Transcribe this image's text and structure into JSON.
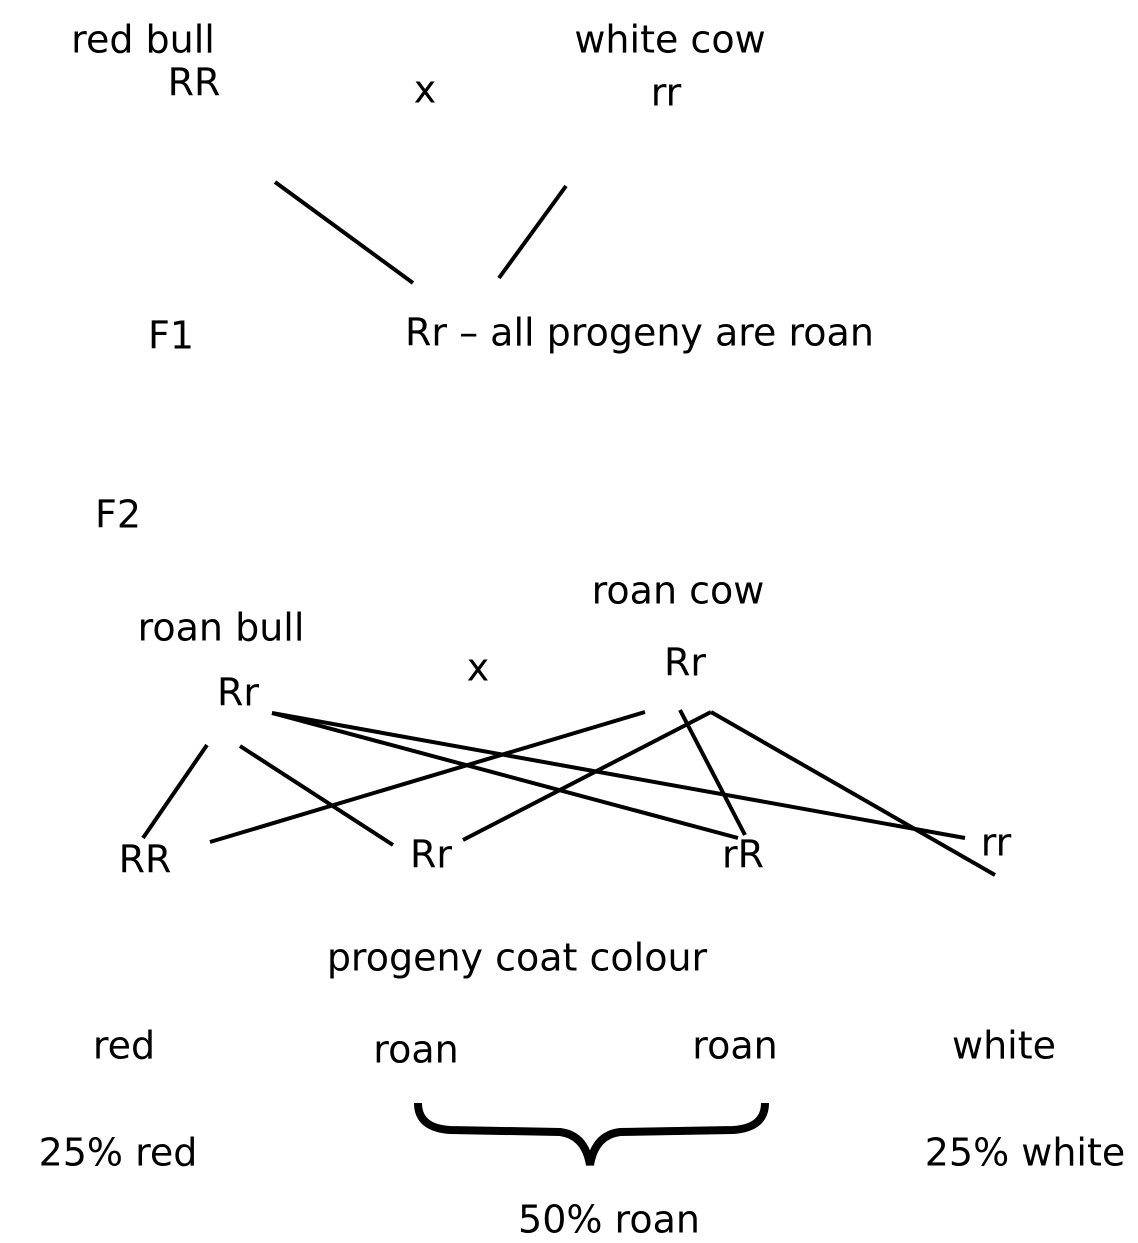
{
  "cross1": {
    "father": {
      "label": "red bull",
      "genotype": "RR"
    },
    "cross": "x",
    "mother": {
      "label": "white cow",
      "genotype": "rr"
    }
  },
  "f1": {
    "label": "F1",
    "result": "Rr – all progeny are roan"
  },
  "f2": {
    "label": "F2",
    "father": {
      "label": "roan bull",
      "genotype": "Rr"
    },
    "cross": "x",
    "mother": {
      "label": "roan cow",
      "genotype": "Rr"
    },
    "offspring": [
      "RR",
      "Rr",
      "rR",
      "rr"
    ],
    "heading": "progeny coat colour",
    "colours": [
      "red",
      "roan",
      "roan",
      "white"
    ],
    "ratios": {
      "red": "25% red",
      "white": "25% white",
      "roan": "50% roan"
    }
  }
}
